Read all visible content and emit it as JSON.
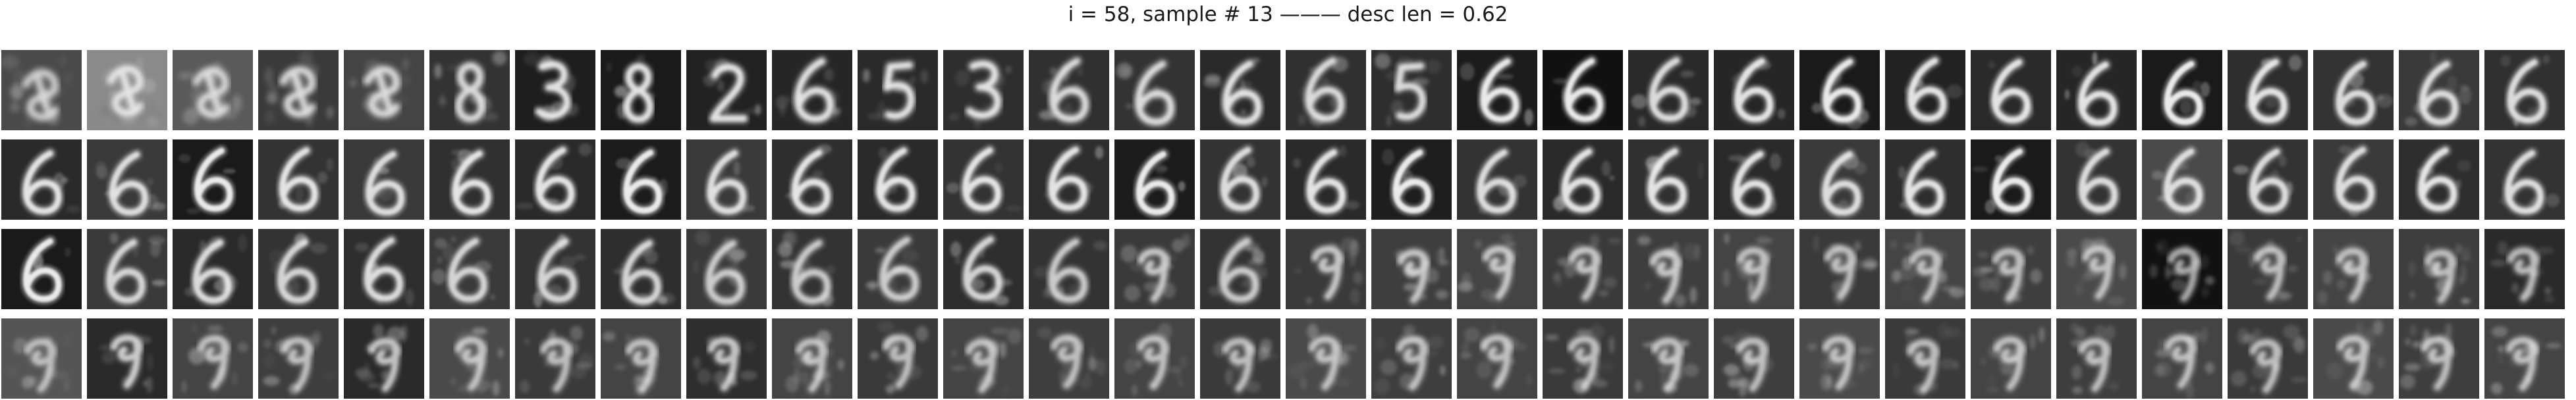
{
  "figure": {
    "title": "i = 58, sample # 13 ——— desc len = 0.62"
  },
  "grid": {
    "rows": 4,
    "cols": 30,
    "description": "Grayscale reconstructions of a handwritten digit; first row evolves from noisy blobs into a 6, later rows show the 6 degrading into noisier 6/9-like shapes.",
    "tiles": [
      [
        {
          "glyph": "blob",
          "bg": "#4a4a4a",
          "noise": 0.55,
          "blur": 3.2,
          "bright": 0.75
        },
        {
          "glyph": "blob",
          "bg": "#8a8a8a",
          "noise": 0.9,
          "blur": 2.8,
          "bright": 0.85
        },
        {
          "glyph": "blob",
          "bg": "#5a5a5a",
          "noise": 0.7,
          "blur": 3.0,
          "bright": 0.8
        },
        {
          "glyph": "blob",
          "bg": "#3a3a3a",
          "noise": 0.5,
          "blur": 3.0,
          "bright": 0.85
        },
        {
          "glyph": "blob",
          "bg": "#444444",
          "noise": 0.6,
          "blur": 3.0,
          "bright": 0.85
        },
        {
          "glyph": "eight",
          "bg": "#333333",
          "noise": 0.4,
          "blur": 2.6,
          "bright": 0.85
        },
        {
          "glyph": "three",
          "bg": "#1e1e1e",
          "noise": 0.3,
          "blur": 2.2,
          "bright": 0.9
        },
        {
          "glyph": "eight",
          "bg": "#1a1a1a",
          "noise": 0.25,
          "blur": 2.2,
          "bright": 0.9
        },
        {
          "glyph": "two",
          "bg": "#222222",
          "noise": 0.3,
          "blur": 2.2,
          "bright": 0.9
        },
        {
          "glyph": "six",
          "bg": "#262626",
          "noise": 0.3,
          "blur": 2.4,
          "bright": 0.9
        },
        {
          "glyph": "five",
          "bg": "#2a2a2a",
          "noise": 0.3,
          "blur": 2.4,
          "bright": 0.9
        },
        {
          "glyph": "three",
          "bg": "#2e2e2e",
          "noise": 0.3,
          "blur": 2.4,
          "bright": 0.9
        },
        {
          "glyph": "six",
          "bg": "#303030",
          "noise": 0.3,
          "blur": 2.4,
          "bright": 0.85
        },
        {
          "glyph": "six",
          "bg": "#333333",
          "noise": 0.35,
          "blur": 2.4,
          "bright": 0.85
        },
        {
          "glyph": "six",
          "bg": "#2a2a2a",
          "noise": 0.3,
          "blur": 2.2,
          "bright": 0.9
        },
        {
          "glyph": "six",
          "bg": "#303030",
          "noise": 0.3,
          "blur": 2.2,
          "bright": 0.85
        },
        {
          "glyph": "five",
          "bg": "#2e2e2e",
          "noise": 0.3,
          "blur": 2.2,
          "bright": 0.85
        },
        {
          "glyph": "six",
          "bg": "#1c1c1c",
          "noise": 0.2,
          "blur": 1.8,
          "bright": 0.95
        },
        {
          "glyph": "six",
          "bg": "#111111",
          "noise": 0.15,
          "blur": 1.8,
          "bright": 0.95
        },
        {
          "glyph": "six",
          "bg": "#2a2a2a",
          "noise": 0.25,
          "blur": 2.0,
          "bright": 0.85
        },
        {
          "glyph": "six",
          "bg": "#262626",
          "noise": 0.2,
          "blur": 1.8,
          "bright": 0.9
        },
        {
          "glyph": "six",
          "bg": "#1a1a1a",
          "noise": 0.2,
          "blur": 1.8,
          "bright": 0.95
        },
        {
          "glyph": "six",
          "bg": "#222222",
          "noise": 0.2,
          "blur": 1.8,
          "bright": 0.9
        },
        {
          "glyph": "six",
          "bg": "#2a2a2a",
          "noise": 0.2,
          "blur": 1.8,
          "bright": 0.9
        },
        {
          "glyph": "six",
          "bg": "#262626",
          "noise": 0.2,
          "blur": 1.8,
          "bright": 0.9
        },
        {
          "glyph": "six",
          "bg": "#1a1a1a",
          "noise": 0.15,
          "blur": 1.6,
          "bright": 0.95
        },
        {
          "glyph": "six",
          "bg": "#2e2e2e",
          "noise": 0.2,
          "blur": 1.8,
          "bright": 0.9
        },
        {
          "glyph": "six",
          "bg": "#333333",
          "noise": 0.2,
          "blur": 1.8,
          "bright": 0.85
        },
        {
          "glyph": "six",
          "bg": "#3a3a3a",
          "noise": 0.25,
          "blur": 2.0,
          "bright": 0.85
        },
        {
          "glyph": "six",
          "bg": "#303030",
          "noise": 0.2,
          "blur": 1.8,
          "bright": 0.85
        }
      ],
      [
        {
          "glyph": "six",
          "bg": "#2a2a2a",
          "noise": 0.2,
          "blur": 1.8,
          "bright": 0.9
        },
        {
          "glyph": "six",
          "bg": "#3a3a3a",
          "noise": 0.25,
          "blur": 1.8,
          "bright": 0.85
        },
        {
          "glyph": "six",
          "bg": "#1a1a1a",
          "noise": 0.15,
          "blur": 1.6,
          "bright": 0.95
        },
        {
          "glyph": "six",
          "bg": "#333333",
          "noise": 0.2,
          "blur": 1.8,
          "bright": 0.9
        },
        {
          "glyph": "six",
          "bg": "#3a3a3a",
          "noise": 0.2,
          "blur": 1.8,
          "bright": 0.85
        },
        {
          "glyph": "six",
          "bg": "#303030",
          "noise": 0.2,
          "blur": 1.8,
          "bright": 0.9
        },
        {
          "glyph": "six",
          "bg": "#2a2a2a",
          "noise": 0.2,
          "blur": 1.8,
          "bright": 0.9
        },
        {
          "glyph": "six",
          "bg": "#1c1c1c",
          "noise": 0.15,
          "blur": 1.6,
          "bright": 0.95
        },
        {
          "glyph": "six",
          "bg": "#3a3a3a",
          "noise": 0.2,
          "blur": 1.8,
          "bright": 0.85
        },
        {
          "glyph": "six",
          "bg": "#2e2e2e",
          "noise": 0.2,
          "blur": 1.8,
          "bright": 0.9
        },
        {
          "glyph": "six",
          "bg": "#2a2a2a",
          "noise": 0.2,
          "blur": 1.8,
          "bright": 0.9
        },
        {
          "glyph": "six",
          "bg": "#333333",
          "noise": 0.2,
          "blur": 1.8,
          "bright": 0.9
        },
        {
          "glyph": "six",
          "bg": "#2e2e2e",
          "noise": 0.2,
          "blur": 1.8,
          "bright": 0.9
        },
        {
          "glyph": "six",
          "bg": "#1c1c1c",
          "noise": 0.15,
          "blur": 1.6,
          "bright": 0.95
        },
        {
          "glyph": "six",
          "bg": "#333333",
          "noise": 0.2,
          "blur": 1.8,
          "bright": 0.85
        },
        {
          "glyph": "six",
          "bg": "#2a2a2a",
          "noise": 0.2,
          "blur": 1.8,
          "bright": 0.9
        },
        {
          "glyph": "six",
          "bg": "#1e1e1e",
          "noise": 0.15,
          "blur": 1.6,
          "bright": 0.95
        },
        {
          "glyph": "six",
          "bg": "#333333",
          "noise": 0.2,
          "blur": 1.8,
          "bright": 0.85
        },
        {
          "glyph": "six",
          "bg": "#2a2a2a",
          "noise": 0.2,
          "blur": 1.8,
          "bright": 0.9
        },
        {
          "glyph": "six",
          "bg": "#303030",
          "noise": 0.2,
          "blur": 1.8,
          "bright": 0.9
        },
        {
          "glyph": "six",
          "bg": "#2a2a2a",
          "noise": 0.2,
          "blur": 1.8,
          "bright": 0.9
        },
        {
          "glyph": "six",
          "bg": "#3a3a3a",
          "noise": 0.2,
          "blur": 1.8,
          "bright": 0.85
        },
        {
          "glyph": "six",
          "bg": "#2e2e2e",
          "noise": 0.2,
          "blur": 1.8,
          "bright": 0.9
        },
        {
          "glyph": "six",
          "bg": "#1a1a1a",
          "noise": 0.15,
          "blur": 1.6,
          "bright": 0.95
        },
        {
          "glyph": "six",
          "bg": "#333333",
          "noise": 0.2,
          "blur": 1.8,
          "bright": 0.85
        },
        {
          "glyph": "six",
          "bg": "#4a4a4a",
          "noise": 0.25,
          "blur": 1.8,
          "bright": 0.85
        },
        {
          "glyph": "six",
          "bg": "#333333",
          "noise": 0.2,
          "blur": 1.8,
          "bright": 0.85
        },
        {
          "glyph": "six",
          "bg": "#3a3a3a",
          "noise": 0.2,
          "blur": 1.8,
          "bright": 0.85
        },
        {
          "glyph": "six",
          "bg": "#2e2e2e",
          "noise": 0.2,
          "blur": 1.8,
          "bright": 0.9
        },
        {
          "glyph": "six",
          "bg": "#333333",
          "noise": 0.2,
          "blur": 1.8,
          "bright": 0.85
        }
      ],
      [
        {
          "glyph": "six",
          "bg": "#1a1a1a",
          "noise": 0.15,
          "blur": 1.6,
          "bright": 0.95
        },
        {
          "glyph": "six",
          "bg": "#3a3a3a",
          "noise": 0.25,
          "blur": 2.0,
          "bright": 0.8
        },
        {
          "glyph": "six",
          "bg": "#2a2a2a",
          "noise": 0.25,
          "blur": 2.0,
          "bright": 0.85
        },
        {
          "glyph": "six",
          "bg": "#333333",
          "noise": 0.25,
          "blur": 2.0,
          "bright": 0.8
        },
        {
          "glyph": "six",
          "bg": "#2e2e2e",
          "noise": 0.25,
          "blur": 2.0,
          "bright": 0.85
        },
        {
          "glyph": "six",
          "bg": "#3a3a3a",
          "noise": 0.3,
          "blur": 2.0,
          "bright": 0.8
        },
        {
          "glyph": "six",
          "bg": "#333333",
          "noise": 0.3,
          "blur": 2.0,
          "bright": 0.8
        },
        {
          "glyph": "six",
          "bg": "#2e2e2e",
          "noise": 0.3,
          "blur": 2.0,
          "bright": 0.8
        },
        {
          "glyph": "six",
          "bg": "#3a3a3a",
          "noise": 0.35,
          "blur": 2.2,
          "bright": 0.75
        },
        {
          "glyph": "six",
          "bg": "#333333",
          "noise": 0.35,
          "blur": 2.2,
          "bright": 0.75
        },
        {
          "glyph": "six",
          "bg": "#3a3a3a",
          "noise": 0.35,
          "blur": 2.2,
          "bright": 0.75
        },
        {
          "glyph": "six",
          "bg": "#2e2e2e",
          "noise": 0.3,
          "blur": 2.0,
          "bright": 0.8
        },
        {
          "glyph": "six",
          "bg": "#333333",
          "noise": 0.35,
          "blur": 2.2,
          "bright": 0.75
        },
        {
          "glyph": "nine",
          "bg": "#3a3a3a",
          "noise": 0.4,
          "blur": 2.2,
          "bright": 0.7
        },
        {
          "glyph": "six",
          "bg": "#333333",
          "noise": 0.35,
          "blur": 2.2,
          "bright": 0.75
        },
        {
          "glyph": "nine",
          "bg": "#3a3a3a",
          "noise": 0.4,
          "blur": 2.2,
          "bright": 0.7
        },
        {
          "glyph": "nine",
          "bg": "#3e3e3e",
          "noise": 0.45,
          "blur": 2.4,
          "bright": 0.7
        },
        {
          "glyph": "nine",
          "bg": "#444444",
          "noise": 0.45,
          "blur": 2.4,
          "bright": 0.7
        },
        {
          "glyph": "nine",
          "bg": "#3a3a3a",
          "noise": 0.45,
          "blur": 2.4,
          "bright": 0.7
        },
        {
          "glyph": "nine",
          "bg": "#3e3e3e",
          "noise": 0.45,
          "blur": 2.4,
          "bright": 0.7
        },
        {
          "glyph": "nine",
          "bg": "#444444",
          "noise": 0.5,
          "blur": 2.4,
          "bright": 0.65
        },
        {
          "glyph": "nine",
          "bg": "#3a3a3a",
          "noise": 0.5,
          "blur": 2.4,
          "bright": 0.65
        },
        {
          "glyph": "nine",
          "bg": "#444444",
          "noise": 0.5,
          "blur": 2.4,
          "bright": 0.65
        },
        {
          "glyph": "nine",
          "bg": "#3e3e3e",
          "noise": 0.5,
          "blur": 2.4,
          "bright": 0.65
        },
        {
          "glyph": "nine",
          "bg": "#4a4a4a",
          "noise": 0.5,
          "blur": 2.4,
          "bright": 0.65
        },
        {
          "glyph": "nine",
          "bg": "#111111",
          "noise": 0.5,
          "blur": 2.4,
          "bright": 0.6
        },
        {
          "glyph": "nine",
          "bg": "#3a3a3a",
          "noise": 0.5,
          "blur": 2.4,
          "bright": 0.65
        },
        {
          "glyph": "nine",
          "bg": "#444444",
          "noise": 0.5,
          "blur": 2.4,
          "bright": 0.65
        },
        {
          "glyph": "nine",
          "bg": "#3e3e3e",
          "noise": 0.5,
          "blur": 2.4,
          "bright": 0.65
        },
        {
          "glyph": "nine",
          "bg": "#2a2a2a",
          "noise": 0.5,
          "blur": 2.4,
          "bright": 0.65
        }
      ],
      [
        {
          "glyph": "nine",
          "bg": "#555555",
          "noise": 0.55,
          "blur": 2.4,
          "bright": 0.6
        },
        {
          "glyph": "nine",
          "bg": "#2a2a2a",
          "noise": 0.4,
          "blur": 2.2,
          "bright": 0.75
        },
        {
          "glyph": "nine",
          "bg": "#444444",
          "noise": 0.5,
          "blur": 2.4,
          "bright": 0.65
        },
        {
          "glyph": "nine",
          "bg": "#3e3e3e",
          "noise": 0.5,
          "blur": 2.4,
          "bright": 0.65
        },
        {
          "glyph": "nine",
          "bg": "#2a2a2a",
          "noise": 0.45,
          "blur": 2.2,
          "bright": 0.7
        },
        {
          "glyph": "nine",
          "bg": "#4a4a4a",
          "noise": 0.5,
          "blur": 2.4,
          "bright": 0.65
        },
        {
          "glyph": "nine",
          "bg": "#3a3a3a",
          "noise": 0.5,
          "blur": 2.4,
          "bright": 0.65
        },
        {
          "glyph": "nine",
          "bg": "#444444",
          "noise": 0.5,
          "blur": 2.4,
          "bright": 0.65
        },
        {
          "glyph": "nine",
          "bg": "#2e2e2e",
          "noise": 0.45,
          "blur": 2.2,
          "bright": 0.7
        },
        {
          "glyph": "nine",
          "bg": "#444444",
          "noise": 0.55,
          "blur": 2.4,
          "bright": 0.65
        },
        {
          "glyph": "nine",
          "bg": "#3a3a3a",
          "noise": 0.5,
          "blur": 2.4,
          "bright": 0.65
        },
        {
          "glyph": "nine",
          "bg": "#444444",
          "noise": 0.55,
          "blur": 2.4,
          "bright": 0.65
        },
        {
          "glyph": "nine",
          "bg": "#3e3e3e",
          "noise": 0.5,
          "blur": 2.4,
          "bright": 0.65
        },
        {
          "glyph": "nine",
          "bg": "#444444",
          "noise": 0.5,
          "blur": 2.4,
          "bright": 0.65
        },
        {
          "glyph": "nine",
          "bg": "#3a3a3a",
          "noise": 0.5,
          "blur": 2.4,
          "bright": 0.65
        },
        {
          "glyph": "nine",
          "bg": "#4a4a4a",
          "noise": 0.5,
          "blur": 2.4,
          "bright": 0.65
        },
        {
          "glyph": "nine",
          "bg": "#3e3e3e",
          "noise": 0.5,
          "blur": 2.4,
          "bright": 0.65
        },
        {
          "glyph": "nine",
          "bg": "#444444",
          "noise": 0.5,
          "blur": 2.4,
          "bright": 0.65
        },
        {
          "glyph": "nine",
          "bg": "#3a3a3a",
          "noise": 0.5,
          "blur": 2.4,
          "bright": 0.65
        },
        {
          "glyph": "nine",
          "bg": "#444444",
          "noise": 0.5,
          "blur": 2.4,
          "bright": 0.65
        },
        {
          "glyph": "nine",
          "bg": "#3e3e3e",
          "noise": 0.5,
          "blur": 2.4,
          "bright": 0.65
        },
        {
          "glyph": "nine",
          "bg": "#4a4a4a",
          "noise": 0.5,
          "blur": 2.4,
          "bright": 0.65
        },
        {
          "glyph": "nine",
          "bg": "#3a3a3a",
          "noise": 0.5,
          "blur": 2.4,
          "bright": 0.65
        },
        {
          "glyph": "nine",
          "bg": "#444444",
          "noise": 0.5,
          "blur": 2.4,
          "bright": 0.65
        },
        {
          "glyph": "nine",
          "bg": "#3e3e3e",
          "noise": 0.5,
          "blur": 2.4,
          "bright": 0.65
        },
        {
          "glyph": "nine",
          "bg": "#444444",
          "noise": 0.5,
          "blur": 2.4,
          "bright": 0.65
        },
        {
          "glyph": "nine",
          "bg": "#3a3a3a",
          "noise": 0.5,
          "blur": 2.4,
          "bright": 0.65
        },
        {
          "glyph": "nine",
          "bg": "#4a4a4a",
          "noise": 0.5,
          "blur": 2.4,
          "bright": 0.65
        },
        {
          "glyph": "nine",
          "bg": "#3e3e3e",
          "noise": 0.5,
          "blur": 2.4,
          "bright": 0.65
        },
        {
          "glyph": "nine",
          "bg": "#444444",
          "noise": 0.5,
          "blur": 2.4,
          "bright": 0.65
        }
      ]
    ]
  }
}
